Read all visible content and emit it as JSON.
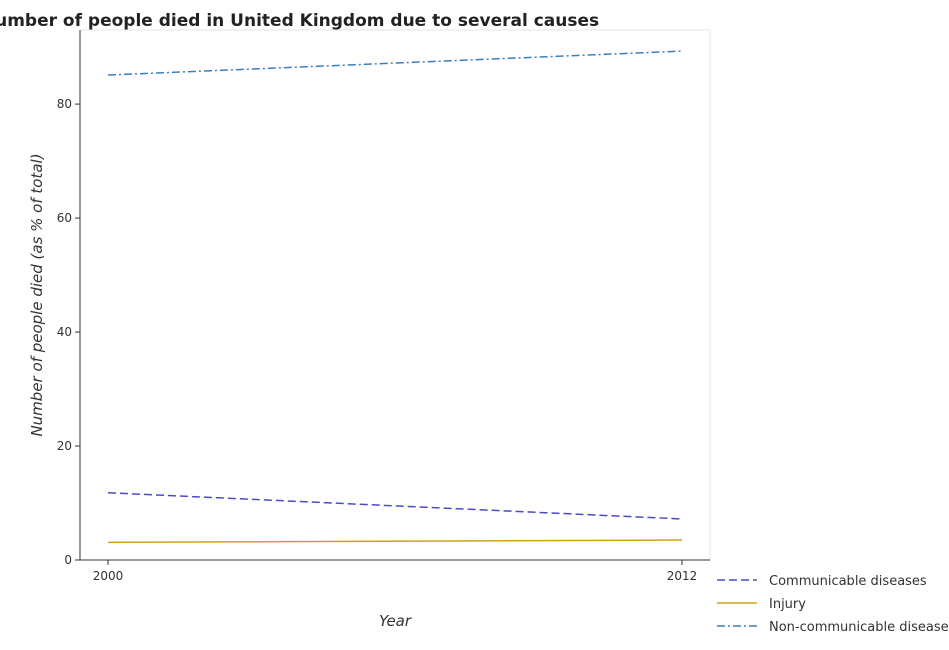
{
  "chart_data": {
    "type": "line",
    "title": "Number of people died in United Kingdom due to several causes",
    "xlabel": "Year",
    "ylabel": "Number of people died (as % of total)",
    "x": [
      "2000",
      "2012"
    ],
    "ylim": [
      0,
      93
    ],
    "yticks": [
      0,
      20,
      40,
      60,
      80
    ],
    "grid": false,
    "legend_position": "bottom-right",
    "series": [
      {
        "name": "Communicable diseases",
        "color": "#4b4bc8",
        "dash": "dashed",
        "values": [
          11.8,
          7.2
        ]
      },
      {
        "name": "Injury",
        "color": "#d4a017",
        "dash": "solid",
        "values": [
          3.1,
          3.5
        ]
      },
      {
        "name": "Non-communicable diseases",
        "color": "#3a7ebf",
        "dash": "dashdot",
        "values": [
          85.1,
          89.3
        ]
      }
    ]
  }
}
